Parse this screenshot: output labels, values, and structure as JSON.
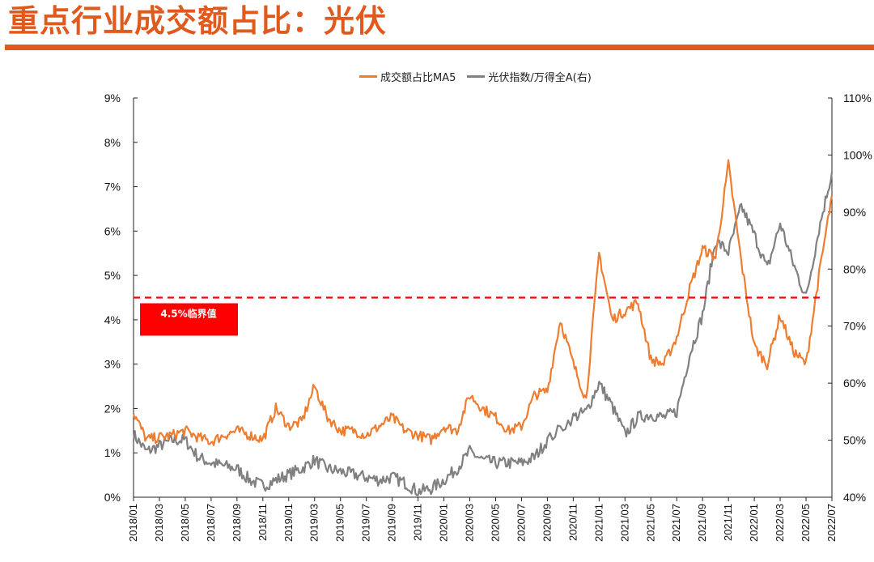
{
  "page": {
    "title": "重点行业成交额占比：光伏"
  },
  "chart_data": {
    "type": "line",
    "x_axis": {
      "ticks": [
        "2018/01",
        "2018/03",
        "2018/05",
        "2018/07",
        "2018/09",
        "2018/11",
        "2019/01",
        "2019/03",
        "2019/05",
        "2019/07",
        "2019/09",
        "2019/11",
        "2020/01",
        "2020/03",
        "2020/05",
        "2020/07",
        "2020/09",
        "2020/11",
        "2021/01",
        "2021/03",
        "2021/05",
        "2021/07",
        "2021/09",
        "2021/11",
        "2022/01",
        "2022/03",
        "2022/05",
        "2022/07"
      ],
      "range": [
        "2018/01",
        "2022/07"
      ]
    },
    "y_left": {
      "ticks": [
        "0%",
        "1%",
        "2%",
        "3%",
        "4%",
        "5%",
        "6%",
        "7%",
        "8%",
        "9%"
      ],
      "range": [
        0,
        9
      ]
    },
    "y_right": {
      "ticks": [
        "40%",
        "50%",
        "60%",
        "70%",
        "80%",
        "90%",
        "100%",
        "110%"
      ],
      "range": [
        40,
        110
      ]
    },
    "legend_position": "top-center",
    "grid": false,
    "series": [
      {
        "name": "成交额占比MA5",
        "axis": "left",
        "color": "#ed7d31",
        "x": [
          "2018/01",
          "2018/02",
          "2018/03",
          "2018/04",
          "2018/05",
          "2018/06",
          "2018/07",
          "2018/08",
          "2018/09",
          "2018/10",
          "2018/11",
          "2018/12",
          "2019/01",
          "2019/02",
          "2019/03",
          "2019/04",
          "2019/05",
          "2019/06",
          "2019/07",
          "2019/08",
          "2019/09",
          "2019/10",
          "2019/11",
          "2019/12",
          "2020/01",
          "2020/02",
          "2020/03",
          "2020/04",
          "2020/05",
          "2020/06",
          "2020/07",
          "2020/08",
          "2020/09",
          "2020/10",
          "2020/11",
          "2020/12",
          "2021/01",
          "2021/02",
          "2021/03",
          "2021/04",
          "2021/05",
          "2021/06",
          "2021/07",
          "2021/08",
          "2021/09",
          "2021/10",
          "2021/11",
          "2021/12",
          "2022/01",
          "2022/02",
          "2022/03",
          "2022/04",
          "2022/05",
          "2022/06",
          "2022/07"
        ],
        "values": [
          1.9,
          1.3,
          1.35,
          1.4,
          1.5,
          1.35,
          1.25,
          1.4,
          1.5,
          1.4,
          1.3,
          2.0,
          1.6,
          1.7,
          2.5,
          1.8,
          1.5,
          1.5,
          1.4,
          1.6,
          1.8,
          1.5,
          1.4,
          1.3,
          1.6,
          1.5,
          2.3,
          2.0,
          1.8,
          1.5,
          1.6,
          2.3,
          2.4,
          4.0,
          3.0,
          2.2,
          5.5,
          4.0,
          4.2,
          4.4,
          3.1,
          3.0,
          3.6,
          4.7,
          5.6,
          5.4,
          7.5,
          5.3,
          3.4,
          3.0,
          4.1,
          3.3,
          3.0,
          5.0,
          6.8
        ]
      },
      {
        "name": "光伏指数/万得全A(右)",
        "axis": "right",
        "color": "#808080",
        "x": [
          "2018/01",
          "2018/02",
          "2018/03",
          "2018/04",
          "2018/05",
          "2018/06",
          "2018/07",
          "2018/08",
          "2018/09",
          "2018/10",
          "2018/11",
          "2018/12",
          "2019/01",
          "2019/02",
          "2019/03",
          "2019/04",
          "2019/05",
          "2019/06",
          "2019/07",
          "2019/08",
          "2019/09",
          "2019/10",
          "2019/11",
          "2019/12",
          "2020/01",
          "2020/02",
          "2020/03",
          "2020/04",
          "2020/05",
          "2020/06",
          "2020/07",
          "2020/08",
          "2020/09",
          "2020/11",
          "2020/12",
          "2021/01",
          "2021/02",
          "2021/03",
          "2021/04",
          "2021/05",
          "2021/06",
          "2021/07",
          "2021/08",
          "2021/09",
          "2021/10",
          "2021/11",
          "2021/12",
          "2022/01",
          "2022/02",
          "2022/03",
          "2022/04",
          "2022/05",
          "2022/06",
          "2022/07"
        ],
        "values": [
          51,
          48,
          49,
          50,
          50,
          47,
          46,
          45.5,
          45,
          43,
          42,
          43,
          44,
          45,
          46.5,
          45,
          44.5,
          44,
          43.5,
          43,
          43.5,
          42.5,
          41,
          41.5,
          43,
          45,
          48,
          46.5,
          46,
          46,
          46,
          47,
          50,
          54,
          55,
          60,
          56,
          51,
          54,
          54.5,
          54,
          55,
          65,
          72,
          85,
          83,
          91,
          86,
          80,
          88,
          81,
          75,
          87,
          97
        ]
      }
    ],
    "annotations": [
      {
        "type": "hline",
        "axis": "left",
        "value": 4.5,
        "color": "#ff0000",
        "style": "dashed"
      },
      {
        "type": "label",
        "text": "4.5%临界值",
        "background": "#ff0000",
        "color": "#ffffff"
      }
    ]
  }
}
